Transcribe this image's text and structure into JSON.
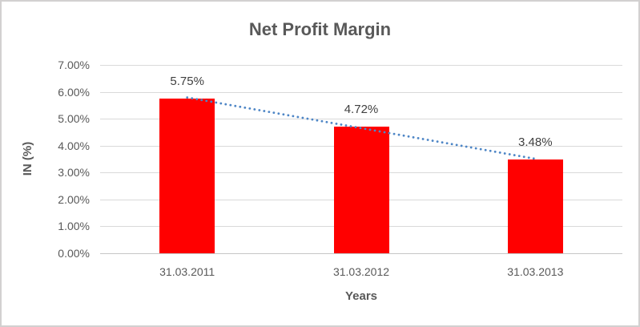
{
  "chart_data": {
    "type": "bar",
    "title": "Net Profit Margin",
    "xlabel": "Years",
    "ylabel": "IN (%)",
    "categories": [
      "31.03.2011",
      "31.03.2012",
      "31.03.2013"
    ],
    "values": [
      5.75,
      4.72,
      3.48
    ],
    "data_labels": [
      "5.75%",
      "4.72%",
      "3.48%"
    ],
    "y_ticks": [
      "0.00%",
      "1.00%",
      "2.00%",
      "3.00%",
      "4.00%",
      "5.00%",
      "6.00%",
      "7.00%"
    ],
    "ylim": [
      0,
      7
    ],
    "grid": true,
    "legend": "none",
    "bar_color": "#ff0000",
    "trendline": {
      "type": "linear",
      "style": "dotted",
      "color": "#4e86c6",
      "start_value": 5.79,
      "end_value": 3.51
    }
  },
  "colors": {
    "title_text": "#595959",
    "axis_text": "#595959",
    "data_label_text": "#404040",
    "gridline": "#d9d9d9",
    "frame_border": "#d2d0d0",
    "background": "#ffffff"
  }
}
